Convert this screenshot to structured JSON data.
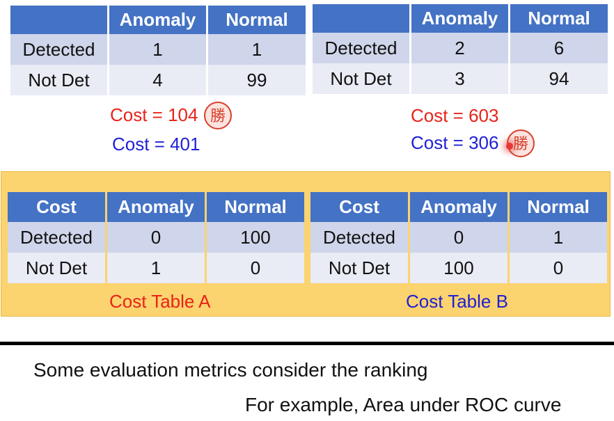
{
  "confusion_matrices": [
    {
      "header": [
        "",
        "Anomaly",
        "Normal"
      ],
      "rows": [
        {
          "label": "Detected",
          "anomaly": "1",
          "normal": "1"
        },
        {
          "label": "Not Det",
          "anomaly": "4",
          "normal": "99"
        }
      ],
      "cost_a": "Cost = 104",
      "cost_b": "Cost = 401",
      "winner_seal": "勝"
    },
    {
      "header": [
        "",
        "Anomaly",
        "Normal"
      ],
      "rows": [
        {
          "label": "Detected",
          "anomaly": "2",
          "normal": "6"
        },
        {
          "label": "Not Det",
          "anomaly": "3",
          "normal": "94"
        }
      ],
      "cost_a": "Cost = 603",
      "cost_b": "Cost = 306",
      "winner_seal": "勝"
    }
  ],
  "cost_tables": [
    {
      "header": [
        "Cost",
        "Anomaly",
        "Normal"
      ],
      "rows": [
        {
          "label": "Detected",
          "anomaly": "0",
          "normal": "100"
        },
        {
          "label": "Not Det",
          "anomaly": "1",
          "normal": "0"
        }
      ],
      "caption": "Cost Table A"
    },
    {
      "header": [
        "Cost",
        "Anomaly",
        "Normal"
      ],
      "rows": [
        {
          "label": "Detected",
          "anomaly": "0",
          "normal": "1"
        },
        {
          "label": "Not Det",
          "anomaly": "100",
          "normal": "0"
        }
      ],
      "caption": "Cost Table B"
    }
  ],
  "bottom": {
    "line1": "Some evaluation metrics consider the ranking",
    "line2": "For example, Area under ROC curve"
  },
  "colors": {
    "header_blue": "#4472c4",
    "row_dark": "#cfd5ea",
    "row_light": "#e9ebf5",
    "cost_a_red": "#e8231a",
    "cost_b_blue": "#1f1fd6",
    "panel_yellow": "#fbd36f",
    "seal_red": "#d8402c"
  }
}
